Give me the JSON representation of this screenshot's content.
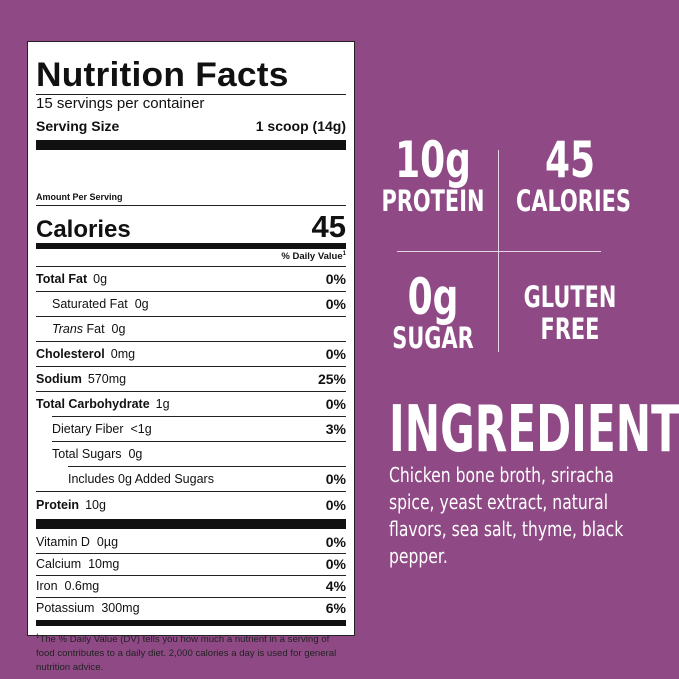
{
  "label": {
    "title": "Nutrition Facts",
    "servings": "15 servings per container",
    "serving_size_label": "Serving Size",
    "serving_size_value": "1 scoop (14g)",
    "amount_per_serving": "Amount Per Serving",
    "calories_label": "Calories",
    "calories_value": "45",
    "daily_value_head": "% Daily Value",
    "nutrients": [
      {
        "name": "Total Fat",
        "amount": "0g",
        "dv": "0%"
      },
      {
        "name": "Saturated Fat",
        "amount": "0g",
        "dv": "0%"
      },
      {
        "name": "Trans",
        "name_suffix": "Fat",
        "amount": "0g",
        "dv": ""
      },
      {
        "name": "Cholesterol",
        "amount": "0mg",
        "dv": "0%"
      },
      {
        "name": "Sodium",
        "amount": "570mg",
        "dv": "25%"
      },
      {
        "name": "Total Carbohydrate",
        "amount": "1g",
        "dv": "0%"
      },
      {
        "name": "Dietary Fiber",
        "amount": "<1g",
        "dv": "3%"
      },
      {
        "name": "Total Sugars",
        "amount": "0g",
        "dv": ""
      },
      {
        "name": "Includes 0g Added Sugars",
        "amount": "",
        "dv": "0%"
      },
      {
        "name": "Protein",
        "amount": "10g",
        "dv": "0%"
      }
    ],
    "vitamins": [
      {
        "name": "Vitamin D",
        "amount": "0µg",
        "dv": "0%"
      },
      {
        "name": "Calcium",
        "amount": "10mg",
        "dv": "0%"
      },
      {
        "name": "Iron",
        "amount": "0.6mg",
        "dv": "4%"
      },
      {
        "name": "Potassium",
        "amount": "300mg",
        "dv": "6%"
      }
    ],
    "footnote": "The % Daily Value (DV) tells you how much a nutrient in a serving of food contributes to a daily diet. 2,000 calories a day is used for general nutrition advice."
  },
  "stats": [
    {
      "big": "10g",
      "small": "PROTEIN"
    },
    {
      "big": "45",
      "small": "CALORIES"
    },
    {
      "big": "0g",
      "small": "SUGAR"
    },
    {
      "big": "GLUTEN",
      "small": "FREE"
    }
  ],
  "ingredients": {
    "title": "INGREDIENTS",
    "text": "Chicken bone broth, sriracha spice, yeast extract, natural flavors, sea salt, thyme, black pepper."
  },
  "colors": {
    "background": "#8f4a86",
    "label_bg": "#ffffff",
    "text_light": "#ffffff"
  }
}
